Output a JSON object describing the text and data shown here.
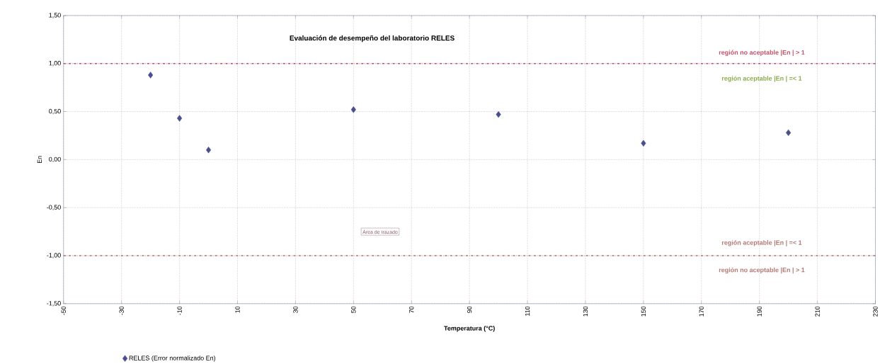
{
  "chart_data": {
    "type": "scatter",
    "title": "Evaluación de desempeño del laboratorio RELES",
    "xlabel": "Temperatura (°C)",
    "ylabel": "En",
    "x": [
      -20,
      -10,
      0,
      50,
      100,
      150,
      200
    ],
    "series": [
      {
        "name": "RELES (Error normalizado En)",
        "color": "#4a4f8c",
        "values": [
          0.88,
          0.43,
          0.1,
          0.52,
          0.47,
          0.17,
          0.28
        ]
      }
    ],
    "xlim": [
      -50,
      230
    ],
    "xticks": [
      -50,
      -30,
      -10,
      10,
      30,
      50,
      70,
      90,
      110,
      130,
      150,
      170,
      190,
      210,
      230
    ],
    "ylim": [
      -1.5,
      1.5
    ],
    "yticks": [
      {
        "value": -1.5,
        "label": "-1,50"
      },
      {
        "value": -1.0,
        "label": "-1,00"
      },
      {
        "value": -0.5,
        "label": "-0,50"
      },
      {
        "value": 0,
        "label": "0,00"
      },
      {
        "value": 0.5,
        "label": "0,50"
      },
      {
        "value": 1.0,
        "label": "1,00"
      },
      {
        "value": 1.5,
        "label": "1,50"
      }
    ],
    "ref_lines": [
      {
        "axis": "y",
        "value": 1,
        "color": "#c8506a",
        "line_style": "dashed"
      },
      {
        "axis": "y",
        "value": -1,
        "color": "#b47a72",
        "line_style": "dashed"
      }
    ],
    "annotations": [
      "región no aceptable |En | > 1",
      "región  aceptable |En | =< 1",
      "región  aceptable |En | =< 1",
      "región no aceptable |En | > 1",
      "Área de trazado"
    ],
    "grid": true,
    "legend": "bottom left",
    "marker": "diamond"
  }
}
